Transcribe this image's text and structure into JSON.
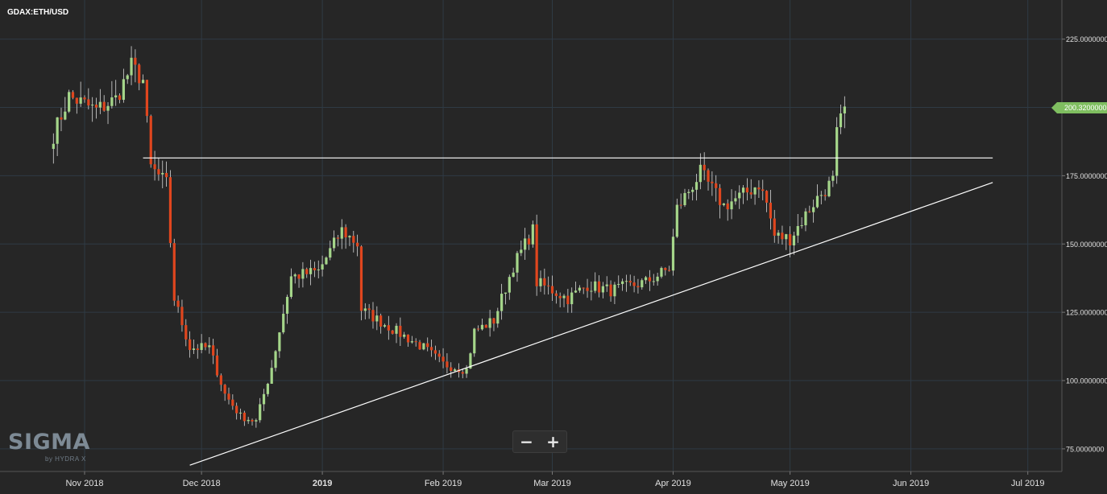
{
  "symbol": "GDAX:ETH/USD",
  "brand": {
    "name": "SIGMA",
    "tagline": "by HYDRA X"
  },
  "zoom": {
    "minus": "−",
    "plus": "+"
  },
  "last_price_label": "200.3200000",
  "colors": {
    "background": "#262626",
    "grid": "#2f3a44",
    "up": "#a5d68a",
    "down": "#e0461e",
    "wick": "#d8d8d8",
    "trendline": "#ffffff",
    "axis_text": "#e0e0e0",
    "last_price": "#7fbe60"
  },
  "chart_data": {
    "type": "candlestick",
    "title": "",
    "x_tick_labels": [
      "Nov 2018",
      "Dec 2018",
      "2019",
      "Feb 2019",
      "Mar 2019",
      "Apr 2019",
      "May 2019",
      "Jun 2019",
      "Jul 2019"
    ],
    "x_tick_dates": [
      "2018-11-01",
      "2018-12-01",
      "2019-01-01",
      "2019-02-01",
      "2019-03-01",
      "2019-04-01",
      "2019-05-01",
      "2019-06-01",
      "2019-07-01"
    ],
    "y_tick_labels": [
      "75.0000000",
      "100.0000000",
      "125.0000000",
      "150.0000000",
      "175.0000000",
      "200.0000000",
      "225.0000000"
    ],
    "y_ticks": [
      75,
      100,
      125,
      150,
      175,
      200,
      225
    ],
    "ylim": [
      70,
      240
    ],
    "xlim": [
      "2018-10-24",
      "2019-07-11"
    ],
    "grid": true,
    "bold_x_label": "2019",
    "anchors": [
      [
        "2018-10-24",
        190
      ],
      [
        "2018-10-28",
        204
      ],
      [
        "2018-11-04",
        199
      ],
      [
        "2018-11-09",
        203
      ],
      [
        "2018-11-13",
        215
      ],
      [
        "2018-11-16",
        210
      ],
      [
        "2018-11-18",
        178
      ],
      [
        "2018-11-22",
        172
      ],
      [
        "2018-11-24",
        130
      ],
      [
        "2018-11-28",
        112
      ],
      [
        "2018-12-03",
        112
      ],
      [
        "2018-12-07",
        95
      ],
      [
        "2018-12-11",
        87
      ],
      [
        "2018-12-15",
        85
      ],
      [
        "2018-12-19",
        105
      ],
      [
        "2018-12-24",
        138
      ],
      [
        "2018-12-31",
        140
      ],
      [
        "2019-01-06",
        155
      ],
      [
        "2019-01-10",
        150
      ],
      [
        "2019-01-11",
        126
      ],
      [
        "2019-01-20",
        118
      ],
      [
        "2019-01-27",
        112
      ],
      [
        "2019-02-01",
        106
      ],
      [
        "2019-02-07",
        104
      ],
      [
        "2019-02-09",
        118
      ],
      [
        "2019-02-14",
        122
      ],
      [
        "2019-02-19",
        142
      ],
      [
        "2019-02-24",
        155
      ],
      [
        "2019-02-25",
        136
      ],
      [
        "2019-03-05",
        130
      ],
      [
        "2019-03-10",
        135
      ],
      [
        "2019-03-16",
        133
      ],
      [
        "2019-03-25",
        136
      ],
      [
        "2019-03-31",
        141
      ],
      [
        "2019-04-02",
        163
      ],
      [
        "2019-04-08",
        176
      ],
      [
        "2019-04-14",
        164
      ],
      [
        "2019-04-19",
        168
      ],
      [
        "2019-04-23",
        172
      ],
      [
        "2019-04-25",
        165
      ],
      [
        "2019-04-27",
        153
      ],
      [
        "2019-05-01",
        152
      ],
      [
        "2019-05-07",
        165
      ],
      [
        "2019-05-10",
        170
      ],
      [
        "2019-05-12",
        173
      ],
      [
        "2019-05-13",
        190
      ],
      [
        "2019-05-15",
        200
      ]
    ],
    "last_close": 200.32,
    "trendlines": [
      {
        "name": "resistance",
        "from": [
          "2018-11-16",
          181.5
        ],
        "to": [
          "2019-06-22",
          181.5
        ]
      },
      {
        "name": "support",
        "from": [
          "2018-11-28",
          69
        ],
        "to": [
          "2019-06-22",
          172.5
        ]
      }
    ]
  }
}
